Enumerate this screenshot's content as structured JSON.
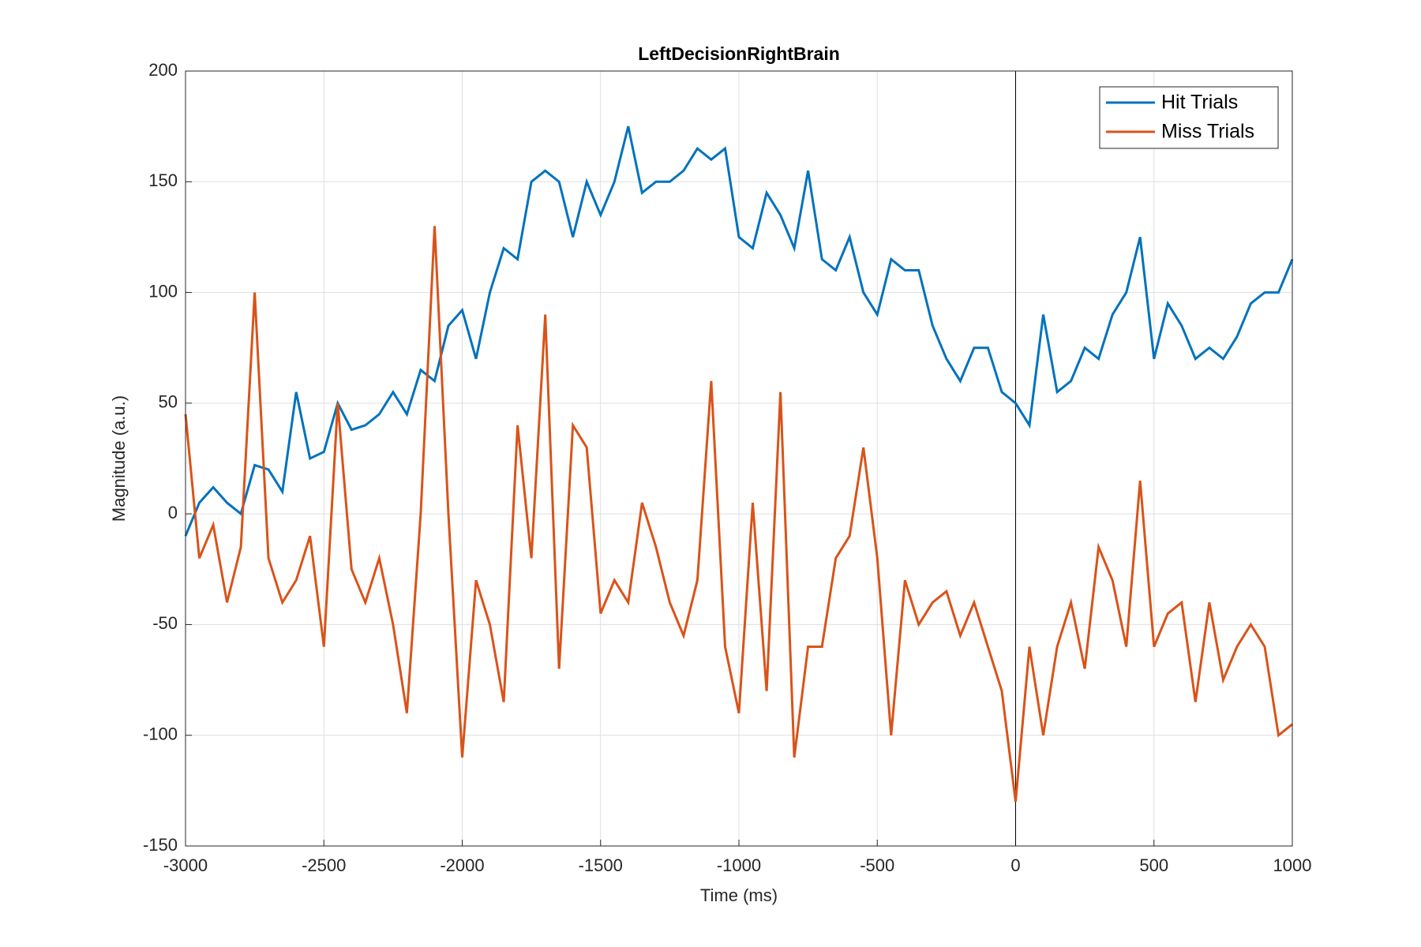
{
  "chart_data": {
    "type": "line",
    "title": "LeftDecisionRightBrain",
    "xlabel": "Time (ms)",
    "ylabel": "Magnitude (a.u.)",
    "x": [
      -3000,
      -2950,
      -2900,
      -2850,
      -2800,
      -2750,
      -2700,
      -2650,
      -2600,
      -2550,
      -2500,
      -2450,
      -2400,
      -2350,
      -2300,
      -2250,
      -2200,
      -2150,
      -2100,
      -2050,
      -2000,
      -1950,
      -1900,
      -1850,
      -1800,
      -1750,
      -1700,
      -1650,
      -1600,
      -1550,
      -1500,
      -1450,
      -1400,
      -1350,
      -1300,
      -1250,
      -1200,
      -1150,
      -1100,
      -1050,
      -1000,
      -950,
      -900,
      -850,
      -800,
      -750,
      -700,
      -650,
      -600,
      -550,
      -500,
      -450,
      -400,
      -350,
      -300,
      -250,
      -200,
      -150,
      -100,
      -50,
      0,
      50,
      100,
      150,
      200,
      250,
      300,
      350,
      400,
      450,
      500,
      550,
      600,
      650,
      700,
      750,
      800,
      850,
      900,
      950,
      1000
    ],
    "series": [
      {
        "name": "Hit Trials",
        "color": "#0072bd",
        "values": [
          -10,
          5,
          12,
          5,
          0,
          22,
          20,
          10,
          55,
          25,
          28,
          50,
          38,
          40,
          45,
          55,
          45,
          65,
          60,
          85,
          92,
          70,
          100,
          120,
          115,
          150,
          155,
          150,
          125,
          150,
          135,
          150,
          175,
          145,
          150,
          150,
          155,
          165,
          160,
          165,
          125,
          120,
          145,
          135,
          120,
          155,
          115,
          110,
          125,
          100,
          90,
          115,
          110,
          110,
          85,
          70,
          60,
          75,
          75,
          55,
          50,
          40,
          90,
          55,
          60,
          75,
          70,
          90,
          100,
          125,
          70,
          95,
          85,
          70,
          75,
          70,
          80,
          95,
          100,
          100,
          115
        ]
      },
      {
        "name": "Miss Trials",
        "color": "#d95319",
        "values": [
          45,
          -20,
          -5,
          -40,
          -15,
          100,
          -20,
          -40,
          -30,
          -10,
          -60,
          50,
          -25,
          -40,
          -20,
          -50,
          -90,
          0,
          130,
          0,
          -110,
          -30,
          -50,
          -85,
          40,
          -20,
          90,
          -70,
          40,
          30,
          -45,
          -30,
          -40,
          5,
          -15,
          -40,
          -55,
          -30,
          60,
          -60,
          -90,
          5,
          -80,
          55,
          -110,
          -60,
          -60,
          -20,
          -10,
          30,
          -20,
          -100,
          -30,
          -50,
          -40,
          -35,
          -55,
          -40,
          -60,
          -80,
          -130,
          -60,
          -100,
          -60,
          -40,
          -70,
          -15,
          -30,
          -60,
          15,
          -60,
          -45,
          -40,
          -85,
          -40,
          -75,
          -60,
          -50,
          -60,
          -100,
          -95
        ]
      }
    ],
    "xlim": [
      -3000,
      1000
    ],
    "ylim": [
      -150,
      200
    ],
    "xticks": [
      -3000,
      -2500,
      -2000,
      -1500,
      -1000,
      -500,
      0,
      500,
      1000
    ],
    "yticks": [
      -150,
      -100,
      -50,
      0,
      50,
      100,
      150,
      200
    ],
    "grid": true,
    "legend": "upper right"
  }
}
